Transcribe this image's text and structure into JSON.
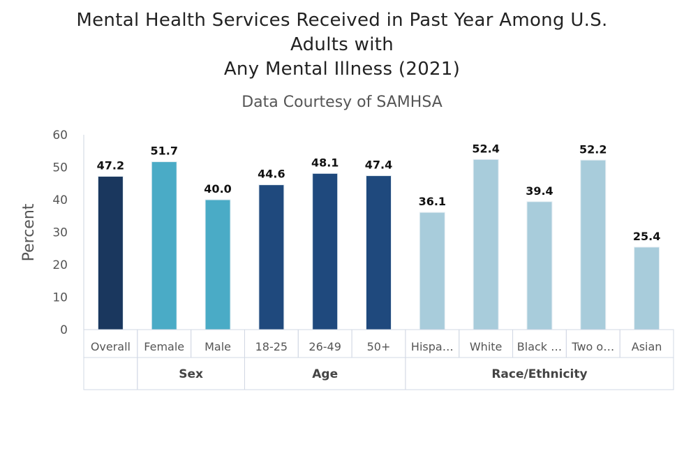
{
  "chart_data": {
    "type": "bar",
    "title_lines": [
      "Mental Health Services Received in Past Year Among U.S.",
      "Adults with",
      "Any Mental Illness (2021)"
    ],
    "subtitle": "Data Courtesy of SAMHSA",
    "ylabel": "Percent",
    "xlabel": "",
    "ylim": [
      0,
      60
    ],
    "yticks": [
      0,
      10,
      20,
      30,
      40,
      50,
      60
    ],
    "grid": false,
    "categories": [
      "Overall",
      "Female",
      "Male",
      "18-25",
      "26-49",
      "50+",
      "Hispa…",
      "White",
      "Black …",
      "Two o…",
      "Asian"
    ],
    "values": [
      47.2,
      51.7,
      40.0,
      44.6,
      48.1,
      47.4,
      36.1,
      52.4,
      39.4,
      52.2,
      25.4
    ],
    "data_labels": [
      "47.2",
      "51.7",
      "40.0",
      "44.6",
      "48.1",
      "47.4",
      "36.1",
      "52.4",
      "39.4",
      "52.2",
      "25.4"
    ],
    "groups": [
      {
        "label": "",
        "count": 1,
        "color": "#1a375e"
      },
      {
        "label": "Sex",
        "count": 2,
        "color": "#4aabc6"
      },
      {
        "label": "Age",
        "count": 3,
        "color": "#1f497d"
      },
      {
        "label": "Race/Ethnicity",
        "count": 5,
        "color": "#a8ccdb"
      }
    ]
  }
}
